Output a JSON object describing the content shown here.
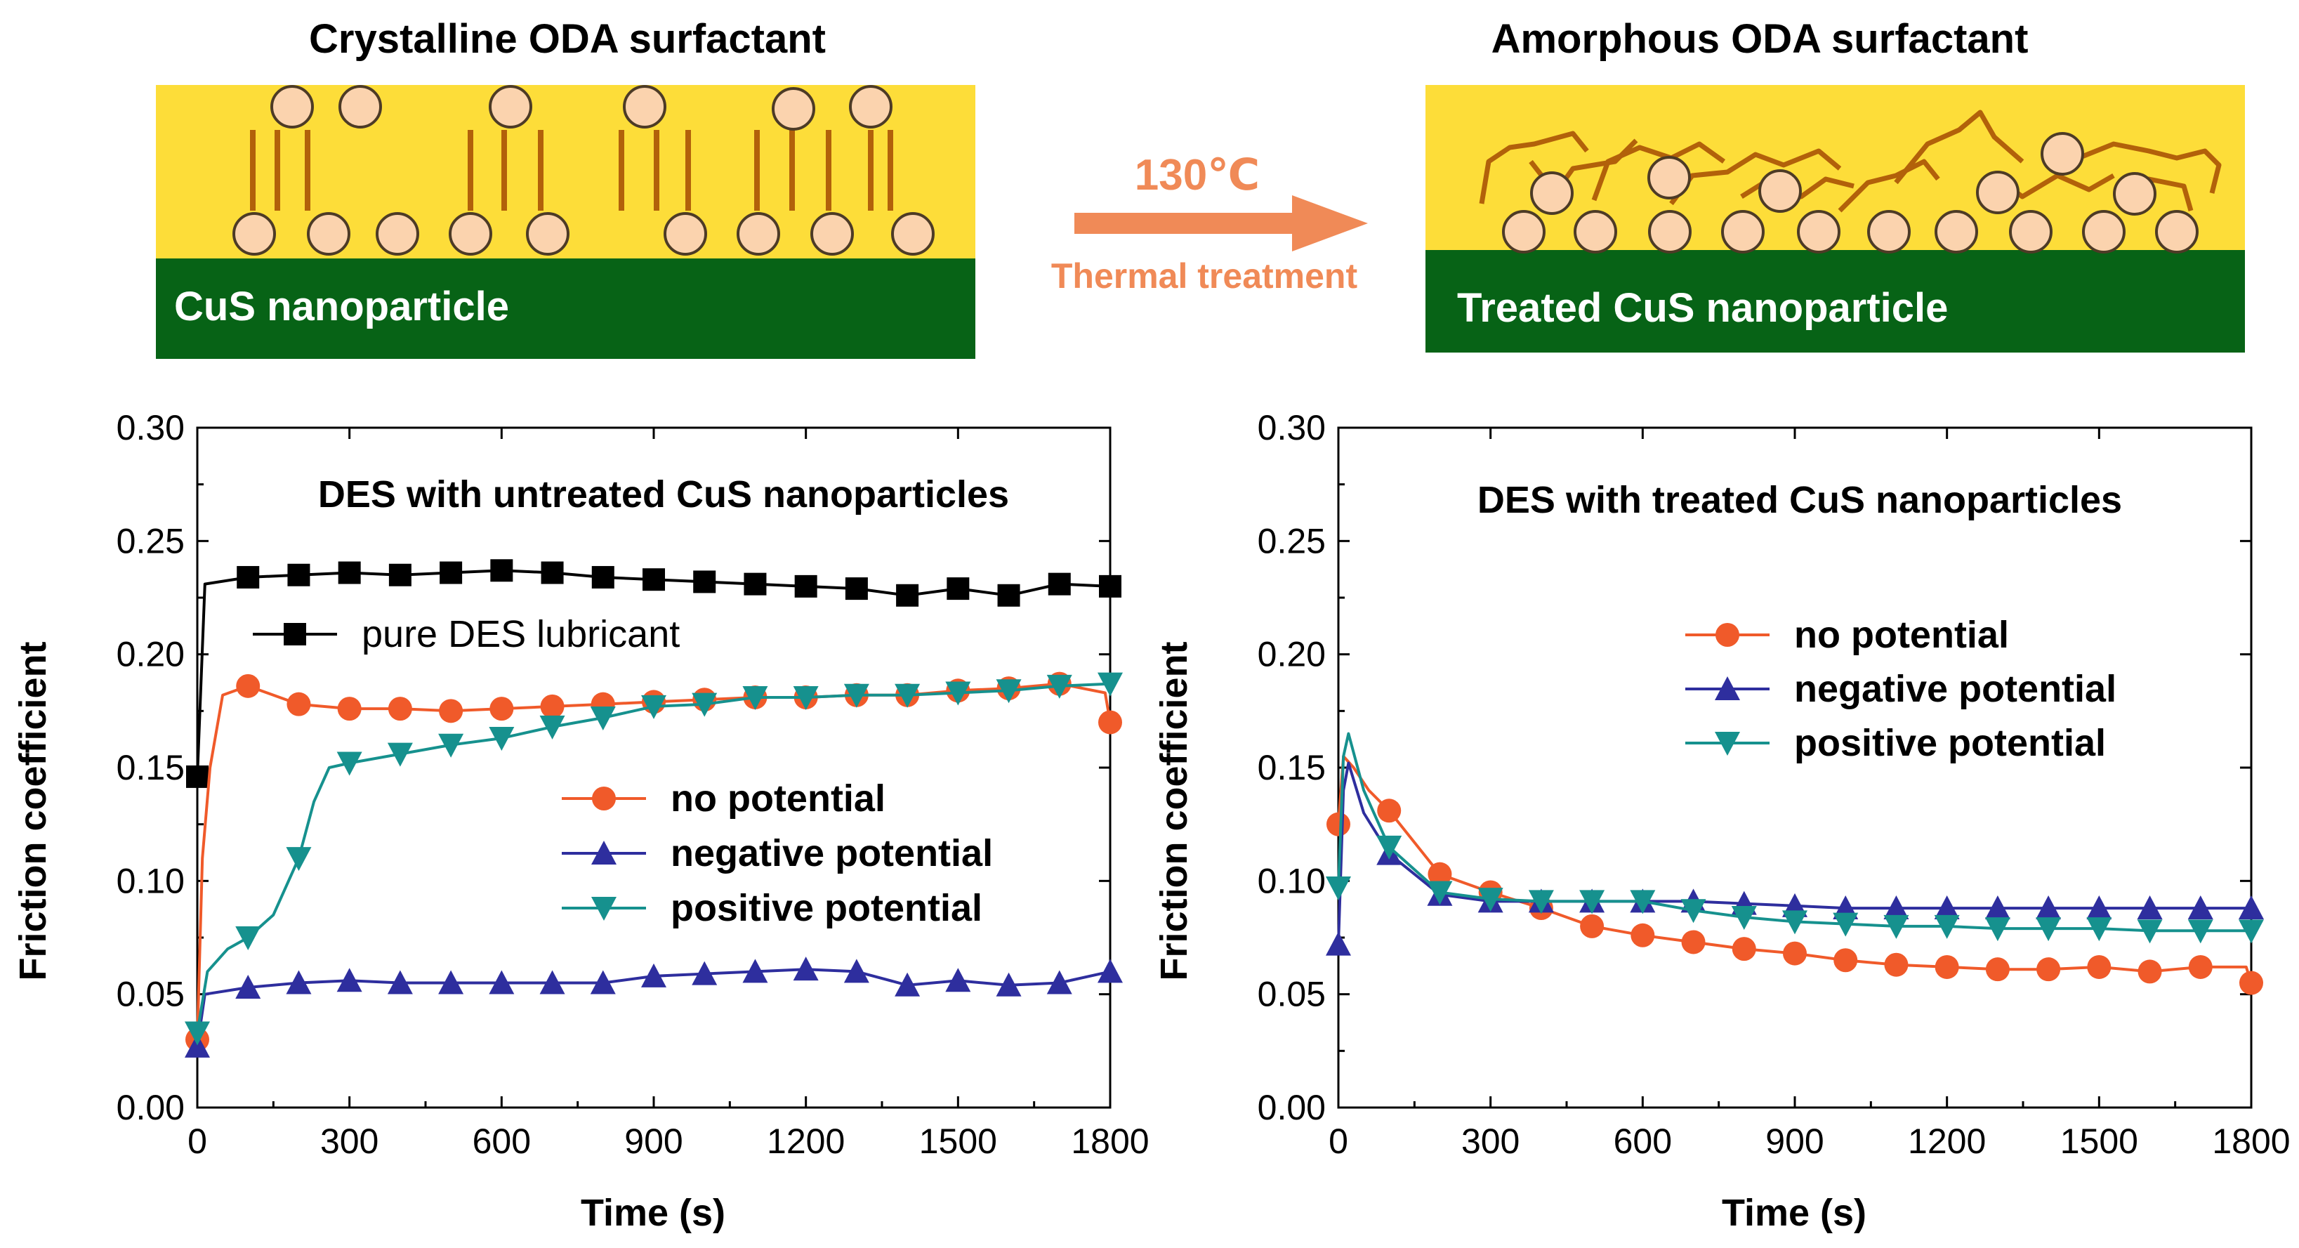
{
  "schematic": {
    "left_title": "Crystalline ODA surfactant",
    "right_title": "Amorphous ODA surfactant",
    "left_bar_label": "CuS nanoparticle",
    "right_bar_label": "Treated CuS nanoparticle",
    "arrow_temperature": "130℃",
    "arrow_caption": "Thermal treatment",
    "colors": {
      "layer": "#fddd39",
      "substrate": "#076316",
      "chain": "#b2610a",
      "particle_fill": "#fbd3ae",
      "particle_edge": "#4d3b26",
      "arrow": "#f08a57"
    }
  },
  "chart_data": [
    {
      "type": "line",
      "title": "DES with untreated CuS nanoparticles",
      "xlabel": "Time (s)",
      "ylabel": "Friction coefficient",
      "xlim": [
        0,
        1800
      ],
      "ylim": [
        0,
        0.3
      ],
      "xticks": [
        "0",
        "300",
        "600",
        "900",
        "1200",
        "1500",
        "1800"
      ],
      "yticks": [
        "0.00",
        "0.05",
        "0.10",
        "0.15",
        "0.20",
        "0.25",
        "0.30"
      ],
      "legend": [
        "pure DES lubricant",
        "no potential",
        "negative potential",
        "positive potential"
      ],
      "series": [
        {
          "name": "pure DES lubricant",
          "marker": "square",
          "color": "#000000",
          "x": [
            0,
            15,
            100,
            200,
            300,
            400,
            500,
            600,
            700,
            800,
            900,
            1000,
            1100,
            1200,
            1300,
            1400,
            1500,
            1600,
            1700,
            1800
          ],
          "y": [
            0.146,
            0.231,
            0.234,
            0.235,
            0.236,
            0.235,
            0.236,
            0.237,
            0.236,
            0.234,
            0.233,
            0.232,
            0.231,
            0.23,
            0.229,
            0.226,
            0.229,
            0.226,
            0.231,
            0.23
          ]
        },
        {
          "name": "no potential",
          "marker": "circle",
          "color": "#f05a2a",
          "x": [
            0,
            10,
            25,
            50,
            100,
            200,
            300,
            400,
            500,
            600,
            700,
            800,
            900,
            1000,
            1100,
            1200,
            1300,
            1400,
            1500,
            1600,
            1700,
            1790,
            1800
          ],
          "y": [
            0.03,
            0.11,
            0.15,
            0.182,
            0.186,
            0.178,
            0.176,
            0.176,
            0.175,
            0.176,
            0.177,
            0.178,
            0.179,
            0.18,
            0.181,
            0.181,
            0.182,
            0.182,
            0.184,
            0.185,
            0.187,
            0.183,
            0.17
          ]
        },
        {
          "name": "negative potential",
          "marker": "triangle-up",
          "color": "#2e2e9e",
          "x": [
            0,
            15,
            100,
            200,
            300,
            400,
            500,
            600,
            700,
            800,
            900,
            1000,
            1100,
            1200,
            1300,
            1400,
            1500,
            1600,
            1700,
            1800
          ],
          "y": [
            0.027,
            0.05,
            0.053,
            0.055,
            0.056,
            0.055,
            0.055,
            0.055,
            0.055,
            0.055,
            0.058,
            0.059,
            0.06,
            0.061,
            0.06,
            0.054,
            0.056,
            0.054,
            0.055,
            0.06
          ]
        },
        {
          "name": "positive potential",
          "marker": "triangle-down",
          "color": "#16918e",
          "x": [
            0,
            20,
            60,
            100,
            150,
            200,
            230,
            260,
            300,
            400,
            500,
            600,
            700,
            800,
            900,
            1000,
            1100,
            1200,
            1300,
            1400,
            1500,
            1600,
            1700,
            1800
          ],
          "y": [
            0.033,
            0.06,
            0.07,
            0.075,
            0.085,
            0.11,
            0.135,
            0.15,
            0.152,
            0.156,
            0.16,
            0.163,
            0.168,
            0.172,
            0.177,
            0.178,
            0.181,
            0.181,
            0.182,
            0.182,
            0.183,
            0.184,
            0.186,
            0.187
          ]
        }
      ]
    },
    {
      "type": "line",
      "title": "DES with treated CuS nanoparticles",
      "xlabel": "Time (s)",
      "ylabel": "Friction coefficient",
      "xlim": [
        0,
        1800
      ],
      "ylim": [
        0,
        0.3
      ],
      "xticks": [
        "0",
        "300",
        "600",
        "900",
        "1200",
        "1500",
        "1800"
      ],
      "yticks": [
        "0.00",
        "0.05",
        "0.10",
        "0.15",
        "0.20",
        "0.25",
        "0.30"
      ],
      "legend": [
        "no potential",
        "negative potential",
        "positive potential"
      ],
      "series": [
        {
          "name": "no potential",
          "marker": "circle",
          "color": "#f05a2a",
          "x": [
            0,
            10,
            30,
            60,
            100,
            200,
            300,
            400,
            500,
            600,
            700,
            800,
            900,
            1000,
            1100,
            1200,
            1300,
            1400,
            1500,
            1600,
            1700,
            1790,
            1800
          ],
          "y": [
            0.125,
            0.155,
            0.15,
            0.14,
            0.131,
            0.103,
            0.095,
            0.088,
            0.08,
            0.076,
            0.073,
            0.07,
            0.068,
            0.065,
            0.063,
            0.062,
            0.061,
            0.061,
            0.062,
            0.06,
            0.062,
            0.062,
            0.055
          ]
        },
        {
          "name": "negative potential",
          "marker": "triangle-up",
          "color": "#2e2e9e",
          "x": [
            0,
            10,
            20,
            50,
            100,
            200,
            300,
            400,
            500,
            600,
            700,
            800,
            900,
            1000,
            1100,
            1200,
            1300,
            1400,
            1500,
            1600,
            1700,
            1800
          ],
          "y": [
            0.072,
            0.14,
            0.152,
            0.13,
            0.112,
            0.094,
            0.091,
            0.091,
            0.091,
            0.091,
            0.091,
            0.09,
            0.089,
            0.088,
            0.088,
            0.088,
            0.088,
            0.088,
            0.088,
            0.088,
            0.088,
            0.088
          ]
        },
        {
          "name": "positive potential",
          "marker": "triangle-down",
          "color": "#16918e",
          "x": [
            0,
            10,
            20,
            50,
            100,
            200,
            300,
            400,
            500,
            600,
            700,
            800,
            900,
            1000,
            1100,
            1200,
            1300,
            1400,
            1500,
            1600,
            1700,
            1800
          ],
          "y": [
            0.097,
            0.155,
            0.165,
            0.14,
            0.115,
            0.095,
            0.092,
            0.091,
            0.091,
            0.091,
            0.087,
            0.084,
            0.082,
            0.081,
            0.08,
            0.08,
            0.079,
            0.079,
            0.079,
            0.078,
            0.078,
            0.078
          ]
        }
      ]
    }
  ]
}
